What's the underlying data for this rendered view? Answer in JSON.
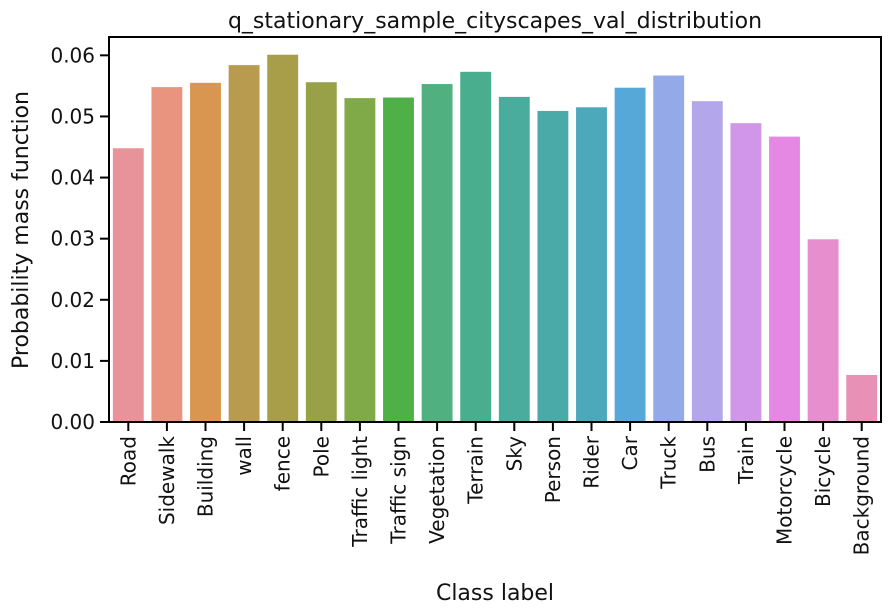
{
  "chart_data": {
    "type": "bar",
    "title": "q_stationary_sample_cityscapes_val_distribution",
    "xlabel": "Class label",
    "ylabel": "Probability mass function",
    "ylim": [
      0,
      0.063
    ],
    "yticks": [
      "0.00",
      "0.01",
      "0.02",
      "0.03",
      "0.04",
      "0.05",
      "0.06"
    ],
    "grid": false,
    "categories": [
      "Road",
      "Sidewalk",
      "Building",
      "wall",
      "fence",
      "Pole",
      "Traffic light",
      "Traffic sign",
      "Vegetation",
      "Terrain",
      "Sky",
      "Person",
      "Rider",
      "Car",
      "Truck",
      "Bus",
      "Train",
      "Motorcycle",
      "Bicycle",
      "Background"
    ],
    "values": [
      0.0448,
      0.0548,
      0.0555,
      0.0584,
      0.0601,
      0.0556,
      0.053,
      0.0531,
      0.0553,
      0.0573,
      0.0532,
      0.0509,
      0.0515,
      0.0547,
      0.0567,
      0.0525,
      0.0489,
      0.0467,
      0.0299,
      0.0077
    ],
    "colors": [
      "#E8929A",
      "#E8947E",
      "#D89650",
      "#B99B50",
      "#A89D48",
      "#98A048",
      "#80AA48",
      "#50B048",
      "#50B080",
      "#48AE8E",
      "#4AAC9C",
      "#4AAAA8",
      "#4CA9BC",
      "#56A8D8",
      "#94AAE8",
      "#B3A6EA",
      "#D196E8",
      "#E488E4",
      "#E78ECE",
      "#E890B6"
    ]
  }
}
